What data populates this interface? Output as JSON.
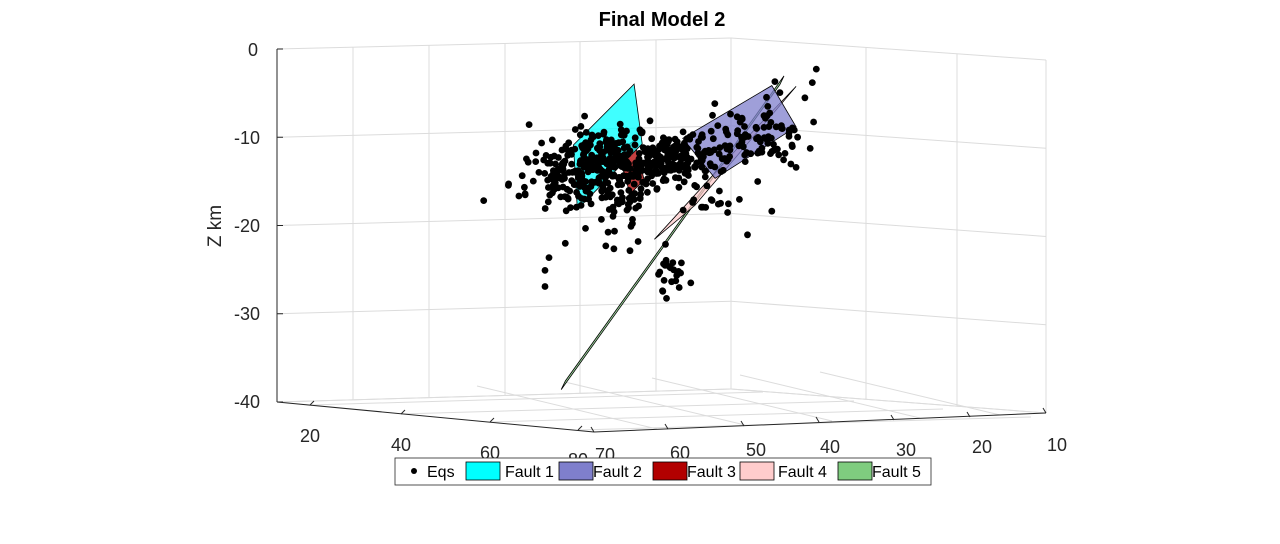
{
  "chart_data": {
    "type": "scatter",
    "title": "Final Model 2",
    "zlabel": "Z km",
    "z_ticks": [
      "0",
      "-10",
      "-20",
      "-30",
      "-40"
    ],
    "left_axis_ticks": [
      "20",
      "40",
      "60",
      "80"
    ],
    "right_axis_ticks": [
      "70",
      "60",
      "50",
      "40",
      "30",
      "20",
      "10"
    ],
    "zlim": [
      -40,
      0
    ],
    "grid": true,
    "legend_position": "bottom",
    "legend": [
      {
        "label": "Eqs",
        "kind": "marker",
        "color": "#000000"
      },
      {
        "label": "Fault 1",
        "kind": "patch",
        "color": "#00ffff"
      },
      {
        "label": "Fault 2",
        "kind": "patch",
        "color": "#7f7fcc"
      },
      {
        "label": "Fault 3",
        "kind": "patch",
        "color": "#b20000"
      },
      {
        "label": "Fault 4",
        "kind": "patch",
        "color": "#ffcccc"
      },
      {
        "label": "Fault 5",
        "kind": "patch",
        "color": "#7fcc7f"
      }
    ],
    "series": [
      {
        "name": "Fault 1",
        "kind": "plane",
        "color": "#00ffff",
        "corners": [
          [
            -8.5,
            7
          ],
          [
            -16.5,
            8
          ],
          [
            -9.5,
            24
          ],
          [
            -2,
            22
          ]
        ]
      },
      {
        "name": "Fault 2",
        "kind": "plane",
        "color": "#7f7fcc",
        "corners": [
          [
            -9.5,
            34
          ],
          [
            -15,
            42
          ],
          [
            -10,
            62
          ],
          [
            -4.5,
            56
          ]
        ]
      },
      {
        "name": "Fault 3",
        "kind": "plane",
        "color": "#b20000",
        "corners": [
          [
            -10,
            18
          ],
          [
            -15.5,
            21
          ],
          [
            -14,
            24.5
          ],
          [
            -9,
            22
          ]
        ]
      },
      {
        "name": "Fault 4",
        "kind": "plane",
        "color": "#ffcccc",
        "corners": [
          [
            -21.5,
            27
          ],
          [
            -18,
            37
          ],
          [
            -5,
            62
          ],
          [
            -10,
            51
          ]
        ]
      },
      {
        "name": "Fault 5",
        "kind": "plane",
        "color": "#7fcc7f",
        "corners": [
          [
            -38.5,
            4
          ],
          [
            -37.5,
            5
          ],
          [
            -3.5,
            59
          ],
          [
            -4.5,
            58
          ]
        ]
      },
      {
        "name": "Eqs",
        "kind": "points",
        "color": "#000000",
        "clusters": [
          {
            "z": -11.5,
            "x": 12,
            "sz": 2.3,
            "sx": 8,
            "n": 300
          },
          {
            "z": -12,
            "x": 28,
            "sz": 1.6,
            "sx": 5,
            "n": 140
          },
          {
            "z": -11.5,
            "x": 38,
            "sz": 1.8,
            "sx": 5,
            "n": 50
          },
          {
            "z": -11,
            "x": 52,
            "sz": 2.2,
            "sx": 6,
            "n": 90
          },
          {
            "z": -16.5,
            "x": 17,
            "sz": 1.6,
            "sx": 4,
            "n": 30
          },
          {
            "z": -18,
            "x": 40,
            "sz": 1.3,
            "sx": 6,
            "n": 14
          },
          {
            "z": -25.5,
            "x": 31,
            "sz": 1.5,
            "sx": 2,
            "n": 20
          }
        ],
        "points": [
          [
            -3.2,
            67
          ],
          [
            -4.8,
            66
          ],
          [
            -5.5,
            58
          ],
          [
            -7,
            55
          ],
          [
            -19,
            10
          ],
          [
            -20.5,
            5
          ],
          [
            -22,
            1
          ],
          [
            -23.5,
            0
          ],
          [
            -25.5,
            0
          ],
          [
            -22,
            17
          ],
          [
            -21.5,
            23
          ],
          [
            -22.5,
            21
          ],
          [
            -21.5,
            15
          ],
          [
            -22.5,
            50
          ],
          [
            -20,
            56
          ],
          [
            -27.5,
            36
          ],
          [
            -28,
            29
          ],
          [
            -29,
            30
          ],
          [
            -15,
            62
          ],
          [
            -18,
            48
          ]
        ]
      }
    ]
  }
}
